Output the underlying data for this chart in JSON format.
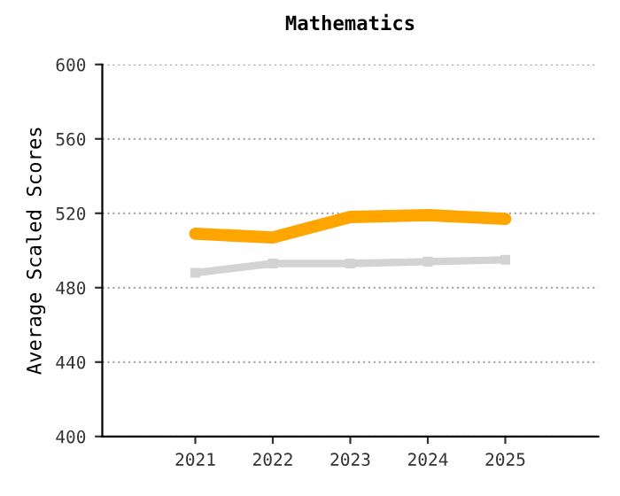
{
  "chart_data": {
    "type": "line",
    "title": "Mathematics",
    "ylabel": "Average Scaled Scores",
    "categories": [
      "2021",
      "2022",
      "2023",
      "2024",
      "2025"
    ],
    "series": [
      {
        "color": "#d3d3d3",
        "values": [
          488,
          493,
          493,
          494,
          495
        ],
        "marker": "square"
      },
      {
        "color": "#ffa500",
        "values": [
          509,
          507,
          518,
          519,
          517
        ],
        "marker": "none"
      }
    ],
    "ylim": [
      400,
      600
    ],
    "yticks": [
      400,
      440,
      480,
      520,
      560,
      600
    ],
    "grid": "y",
    "legend": false
  }
}
